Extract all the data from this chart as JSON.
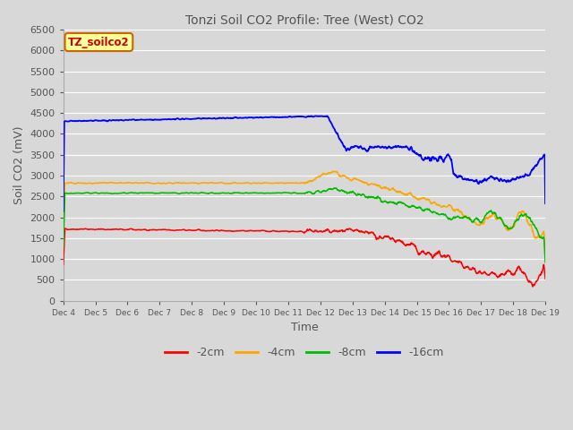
{
  "title": "Tonzi Soil CO2 Profile: Tree (West) CO2",
  "ylabel": "Soil CO2 (mV)",
  "xlabel": "Time",
  "watermark": "TZ_soilco2",
  "ylim": [
    0,
    6500
  ],
  "yticks": [
    0,
    500,
    1000,
    1500,
    2000,
    2500,
    3000,
    3500,
    4000,
    4500,
    5000,
    5500,
    6000,
    6500
  ],
  "xtick_labels": [
    "Dec 4",
    "Dec 5",
    "Dec 6",
    "Dec 7",
    "Dec 8",
    "Dec 9",
    "Dec 10",
    "Dec 11",
    "Dec 12",
    "Dec 13",
    "Dec 14",
    "Dec 15",
    "Dec 16",
    "Dec 17",
    "Dec 18",
    "Dec 19"
  ],
  "colors": {
    "2cm": "#ff0000",
    "4cm": "#ffa500",
    "8cm": "#00bb00",
    "16cm": "#0000ff"
  },
  "legend_labels": [
    "-2cm",
    "-4cm",
    "-8cm",
    "-16cm"
  ],
  "bg_color": "#d8d8d8",
  "grid_color": "#ffffff",
  "title_color": "#555555",
  "axis_color": "#888888",
  "watermark_color": "#cc0000",
  "watermark_bg": "#ffff99",
  "watermark_border": "#cc6600"
}
